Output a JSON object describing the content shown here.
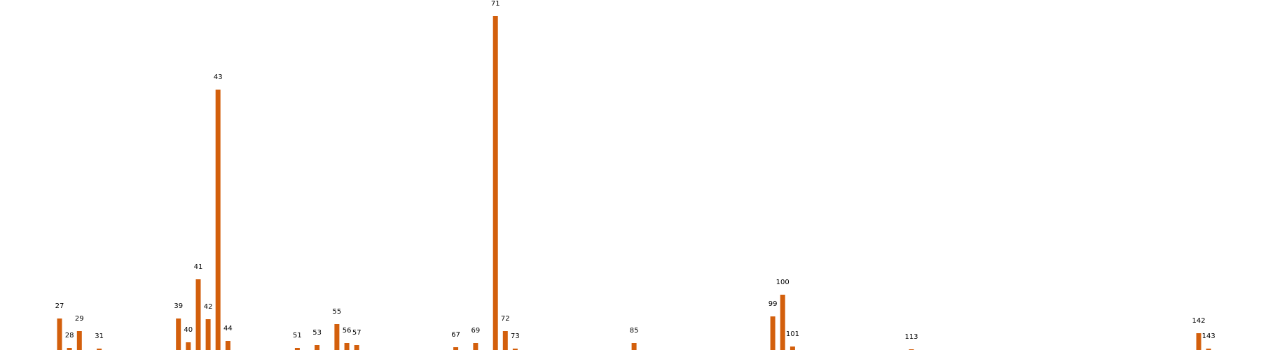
{
  "chart_data": {
    "type": "bar",
    "title": "",
    "xlabel": "",
    "ylabel": "",
    "bar_color": "#d35f0c",
    "background_color": "#ffffff",
    "grid": false,
    "axes_visible": false,
    "points": [
      {
        "x": 27,
        "label": "27",
        "value": 45
      },
      {
        "x": 28,
        "label": "28",
        "value": 3
      },
      {
        "x": 29,
        "label": "29",
        "value": 27
      },
      {
        "x": 31,
        "label": "31",
        "value": 2
      },
      {
        "x": 39,
        "label": "39",
        "value": 45
      },
      {
        "x": 40,
        "label": "40",
        "value": 11
      },
      {
        "x": 41,
        "label": "41",
        "value": 101
      },
      {
        "x": 42,
        "label": "42",
        "value": 44
      },
      {
        "x": 43,
        "label": "43",
        "value": 372
      },
      {
        "x": 44,
        "label": "44",
        "value": 13
      },
      {
        "x": 51,
        "label": "51",
        "value": 3
      },
      {
        "x": 53,
        "label": "53",
        "value": 7
      },
      {
        "x": 55,
        "label": "55",
        "value": 37
      },
      {
        "x": 56,
        "label": "56",
        "value": 10
      },
      {
        "x": 57,
        "label": "57",
        "value": 7
      },
      {
        "x": 67,
        "label": "67",
        "value": 4
      },
      {
        "x": 69,
        "label": "69",
        "value": 10
      },
      {
        "x": 71,
        "label": "71",
        "value": 477
      },
      {
        "x": 72,
        "label": "72",
        "value": 27
      },
      {
        "x": 73,
        "label": "73",
        "value": 2
      },
      {
        "x": 85,
        "label": "85",
        "value": 10
      },
      {
        "x": 99,
        "label": "99",
        "value": 48
      },
      {
        "x": 100,
        "label": "100",
        "value": 79
      },
      {
        "x": 101,
        "label": "101",
        "value": 5
      },
      {
        "x": 113,
        "label": "113",
        "value": 1
      },
      {
        "x": 142,
        "label": "142",
        "value": 24
      },
      {
        "x": 143,
        "label": "143",
        "value": 2
      }
    ]
  }
}
